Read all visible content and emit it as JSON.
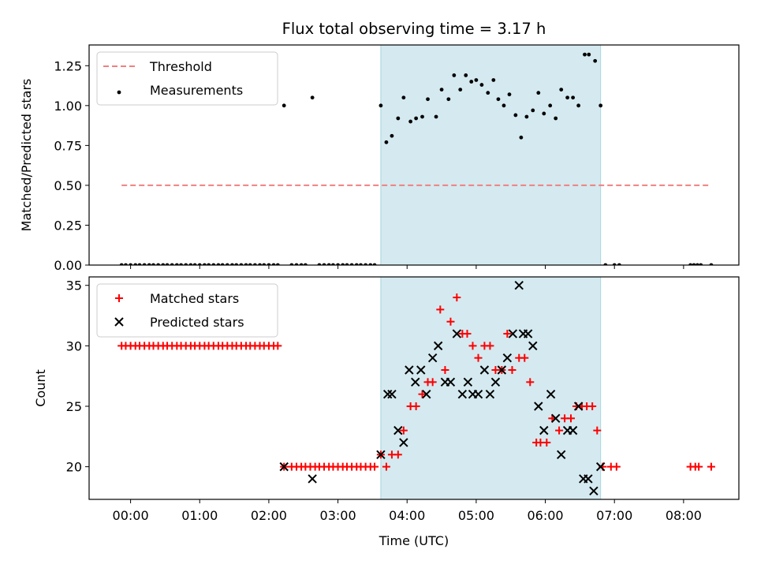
{
  "chart_data": [
    {
      "type": "scatter",
      "title": "Flux total observing time = 3.17 h",
      "xlabel": "",
      "ylabel": "Matched/Predicted stars",
      "xlim": [
        -0.6,
        8.8
      ],
      "ylim": [
        0,
        1.38
      ],
      "yticks": [
        "0.00",
        "0.25",
        "0.50",
        "0.75",
        "1.00",
        "1.25"
      ],
      "legend_position": "top-left",
      "shaded_span": [
        3.62,
        6.8
      ],
      "shade_color": "#d4eaf0",
      "threshold": {
        "name": "Threshold",
        "value": 0.5,
        "x_range": [
          -0.13,
          8.4
        ],
        "color": "#f08080"
      },
      "series": [
        {
          "name": "Measurements",
          "color": "#000000",
          "x": [
            -0.13,
            -0.07,
            0,
            0.07,
            0.13,
            0.2,
            0.27,
            0.33,
            0.4,
            0.47,
            0.53,
            0.6,
            0.67,
            0.73,
            0.8,
            0.87,
            0.93,
            1,
            1.07,
            1.13,
            1.2,
            1.27,
            1.33,
            1.4,
            1.47,
            1.53,
            1.6,
            1.67,
            1.73,
            1.8,
            1.87,
            1.93,
            2,
            2.07,
            2.13,
            2.22,
            2.33,
            2.4,
            2.47,
            2.53,
            2.63,
            2.73,
            2.8,
            2.87,
            2.93,
            3,
            3.07,
            3.13,
            3.2,
            3.27,
            3.33,
            3.4,
            3.47,
            3.53,
            3.62,
            3.7,
            3.78,
            3.87,
            3.95,
            4.05,
            4.13,
            4.22,
            4.3,
            4.42,
            4.5,
            4.6,
            4.68,
            4.77,
            4.85,
            4.93,
            5,
            5.08,
            5.17,
            5.25,
            5.32,
            5.4,
            5.48,
            5.57,
            5.65,
            5.73,
            5.82,
            5.9,
            5.98,
            6.07,
            6.15,
            6.23,
            6.32,
            6.4,
            6.48,
            6.57,
            6.63,
            6.72,
            6.8,
            6.87,
            7,
            7.07,
            8.1,
            8.15,
            8.2,
            8.25,
            8.4
          ],
          "y": [
            0,
            0,
            0,
            0,
            0,
            0,
            0,
            0,
            0,
            0,
            0,
            0,
            0,
            0,
            0,
            0,
            0,
            0,
            0,
            0,
            0,
            0,
            0,
            0,
            0,
            0,
            0,
            0,
            0,
            0,
            0,
            0,
            0,
            0,
            0,
            1.0,
            0,
            0,
            0,
            0,
            1.05,
            0,
            0,
            0,
            0,
            0,
            0,
            0,
            0,
            0,
            0,
            0,
            0,
            0,
            1.0,
            0.77,
            0.81,
            0.92,
            1.05,
            0.9,
            0.92,
            0.93,
            1.04,
            0.93,
            1.1,
            1.04,
            1.19,
            1.1,
            1.19,
            1.15,
            1.16,
            1.13,
            1.08,
            1.16,
            1.04,
            1.0,
            1.07,
            0.94,
            0.8,
            0.93,
            0.97,
            1.08,
            0.95,
            1.0,
            0.92,
            1.1,
            1.05,
            1.05,
            1.0,
            1.32,
            1.32,
            1.28,
            1.0,
            0,
            0,
            0,
            0,
            0,
            0,
            0,
            0
          ]
        }
      ]
    },
    {
      "type": "scatter",
      "title": "",
      "xlabel": "Time (UTC)",
      "ylabel": "Count",
      "xlim": [
        -0.6,
        8.8
      ],
      "ylim": [
        17.3,
        35.7
      ],
      "yticks": [
        "20",
        "25",
        "30",
        "35"
      ],
      "xticks": [
        "00:00",
        "01:00",
        "02:00",
        "03:00",
        "04:00",
        "05:00",
        "06:00",
        "07:00",
        "08:00"
      ],
      "legend_position": "top-left",
      "shaded_span": [
        3.62,
        6.8
      ],
      "series": [
        {
          "name": "Matched stars",
          "marker": "plus",
          "color": "#ff0000",
          "x": [
            -0.13,
            -0.07,
            0,
            0.07,
            0.13,
            0.2,
            0.27,
            0.33,
            0.4,
            0.47,
            0.53,
            0.6,
            0.67,
            0.73,
            0.8,
            0.87,
            0.93,
            1,
            1.07,
            1.13,
            1.2,
            1.27,
            1.33,
            1.4,
            1.47,
            1.53,
            1.6,
            1.67,
            1.73,
            1.8,
            1.87,
            1.93,
            2,
            2.07,
            2.13,
            2.22,
            2.33,
            2.4,
            2.47,
            2.53,
            2.6,
            2.67,
            2.73,
            2.8,
            2.87,
            2.93,
            3,
            3.07,
            3.13,
            3.2,
            3.27,
            3.33,
            3.4,
            3.47,
            3.53,
            3.62,
            3.7,
            3.78,
            3.87,
            3.95,
            4.05,
            4.13,
            4.22,
            4.3,
            4.37,
            4.48,
            4.55,
            4.63,
            4.72,
            4.8,
            4.87,
            4.95,
            5.03,
            5.12,
            5.2,
            5.28,
            5.37,
            5.45,
            5.52,
            5.62,
            5.7,
            5.78,
            5.87,
            5.93,
            6.02,
            6.1,
            6.2,
            6.28,
            6.37,
            6.45,
            6.53,
            6.6,
            6.68,
            6.75,
            6.83,
            6.95,
            7.03,
            8.1,
            8.17,
            8.22,
            8.4
          ],
          "y": [
            30,
            30,
            30,
            30,
            30,
            30,
            30,
            30,
            30,
            30,
            30,
            30,
            30,
            30,
            30,
            30,
            30,
            30,
            30,
            30,
            30,
            30,
            30,
            30,
            30,
            30,
            30,
            30,
            30,
            30,
            30,
            30,
            30,
            30,
            30,
            20,
            20,
            20,
            20,
            20,
            20,
            20,
            20,
            20,
            20,
            20,
            20,
            20,
            20,
            20,
            20,
            20,
            20,
            20,
            20,
            21,
            20,
            21,
            21,
            23,
            25,
            25,
            26,
            27,
            27,
            33,
            28,
            32,
            34,
            31,
            31,
            30,
            29,
            30,
            30,
            28,
            28,
            31,
            28,
            29,
            29,
            27,
            22,
            22,
            22,
            24,
            23,
            24,
            24,
            25,
            25,
            25,
            25,
            23,
            20,
            20,
            20,
            20,
            20,
            20,
            20
          ]
        },
        {
          "name": "Predicted stars",
          "marker": "x",
          "color": "#000000",
          "x": [
            2.22,
            2.63,
            3.62,
            3.72,
            3.78,
            3.87,
            3.95,
            4.03,
            4.12,
            4.2,
            4.28,
            4.37,
            4.45,
            4.55,
            4.63,
            4.72,
            4.8,
            4.88,
            4.95,
            5.03,
            5.12,
            5.2,
            5.28,
            5.37,
            5.45,
            5.53,
            5.62,
            5.68,
            5.75,
            5.82,
            5.9,
            5.98,
            6.08,
            6.15,
            6.23,
            6.32,
            6.4,
            6.48,
            6.55,
            6.62,
            6.7,
            6.8
          ],
          "y": [
            20,
            19,
            21,
            26,
            26,
            23,
            22,
            28,
            27,
            28,
            26,
            29,
            30,
            27,
            27,
            31,
            26,
            27,
            26,
            26,
            28,
            26,
            27,
            28,
            29,
            31,
            35,
            31,
            31,
            30,
            25,
            23,
            26,
            24,
            21,
            23,
            23,
            25,
            19,
            19,
            18,
            20
          ]
        }
      ]
    }
  ]
}
